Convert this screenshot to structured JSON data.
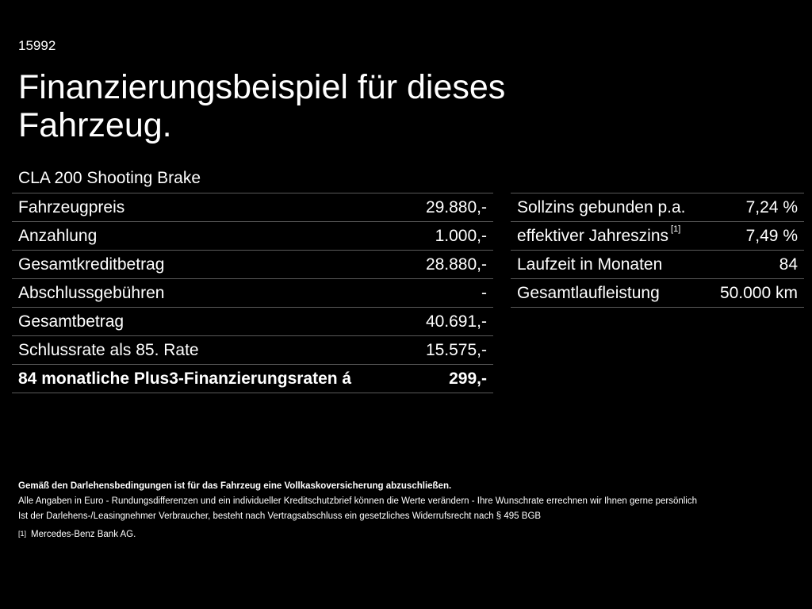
{
  "header": {
    "reference_number": "15992",
    "title": "Finanzierungsbeispiel für dieses Fahrzeug.",
    "model": "CLA 200 Shooting Brake"
  },
  "left_table": {
    "rows": [
      {
        "label": "Fahrzeugpreis",
        "value": "29.880,-"
      },
      {
        "label": "Anzahlung",
        "value": "1.000,-"
      },
      {
        "label": "Gesamtkreditbetrag",
        "value": "28.880,-"
      },
      {
        "label": "Abschlussgebühren",
        "value": "-"
      },
      {
        "label": "Gesamtbetrag",
        "value": "40.691,-"
      },
      {
        "label": "Schlussrate als 85. Rate",
        "value": "15.575,-"
      },
      {
        "label": "84 monatliche Plus3-Finanzierungsraten á",
        "value": "299,-"
      }
    ]
  },
  "right_table": {
    "rows": [
      {
        "label": "Sollzins gebunden p.a.",
        "value": "7,24 %"
      },
      {
        "label": "effektiver Jahreszins",
        "footnote": "[1]",
        "value": "7,49 %"
      },
      {
        "label": "Laufzeit in Monaten",
        "value": "84"
      },
      {
        "label": "Gesamtlaufleistung",
        "value": "50.000 km"
      }
    ]
  },
  "footnotes": {
    "insurance_note": "Gemäß den Darlehensbedingungen ist für das Fahrzeug eine Vollkaskoversicherung abzuschließen.",
    "rounding_note": "Alle Angaben in Euro - Rundungsdifferenzen und ein individueller Kreditschutzbrief können die Werte verändern - Ihre Wunschrate errechnen wir Ihnen gerne persönlich",
    "withdrawal_note": "Ist der Darlehens-/Leasingnehmer Verbraucher, besteht nach Vertragsabschluss ein gesetzliches Widerrufsrecht nach § 495 BGB",
    "reference_mark": "[1]",
    "reference_text": "Mercedes-Benz Bank AG."
  }
}
